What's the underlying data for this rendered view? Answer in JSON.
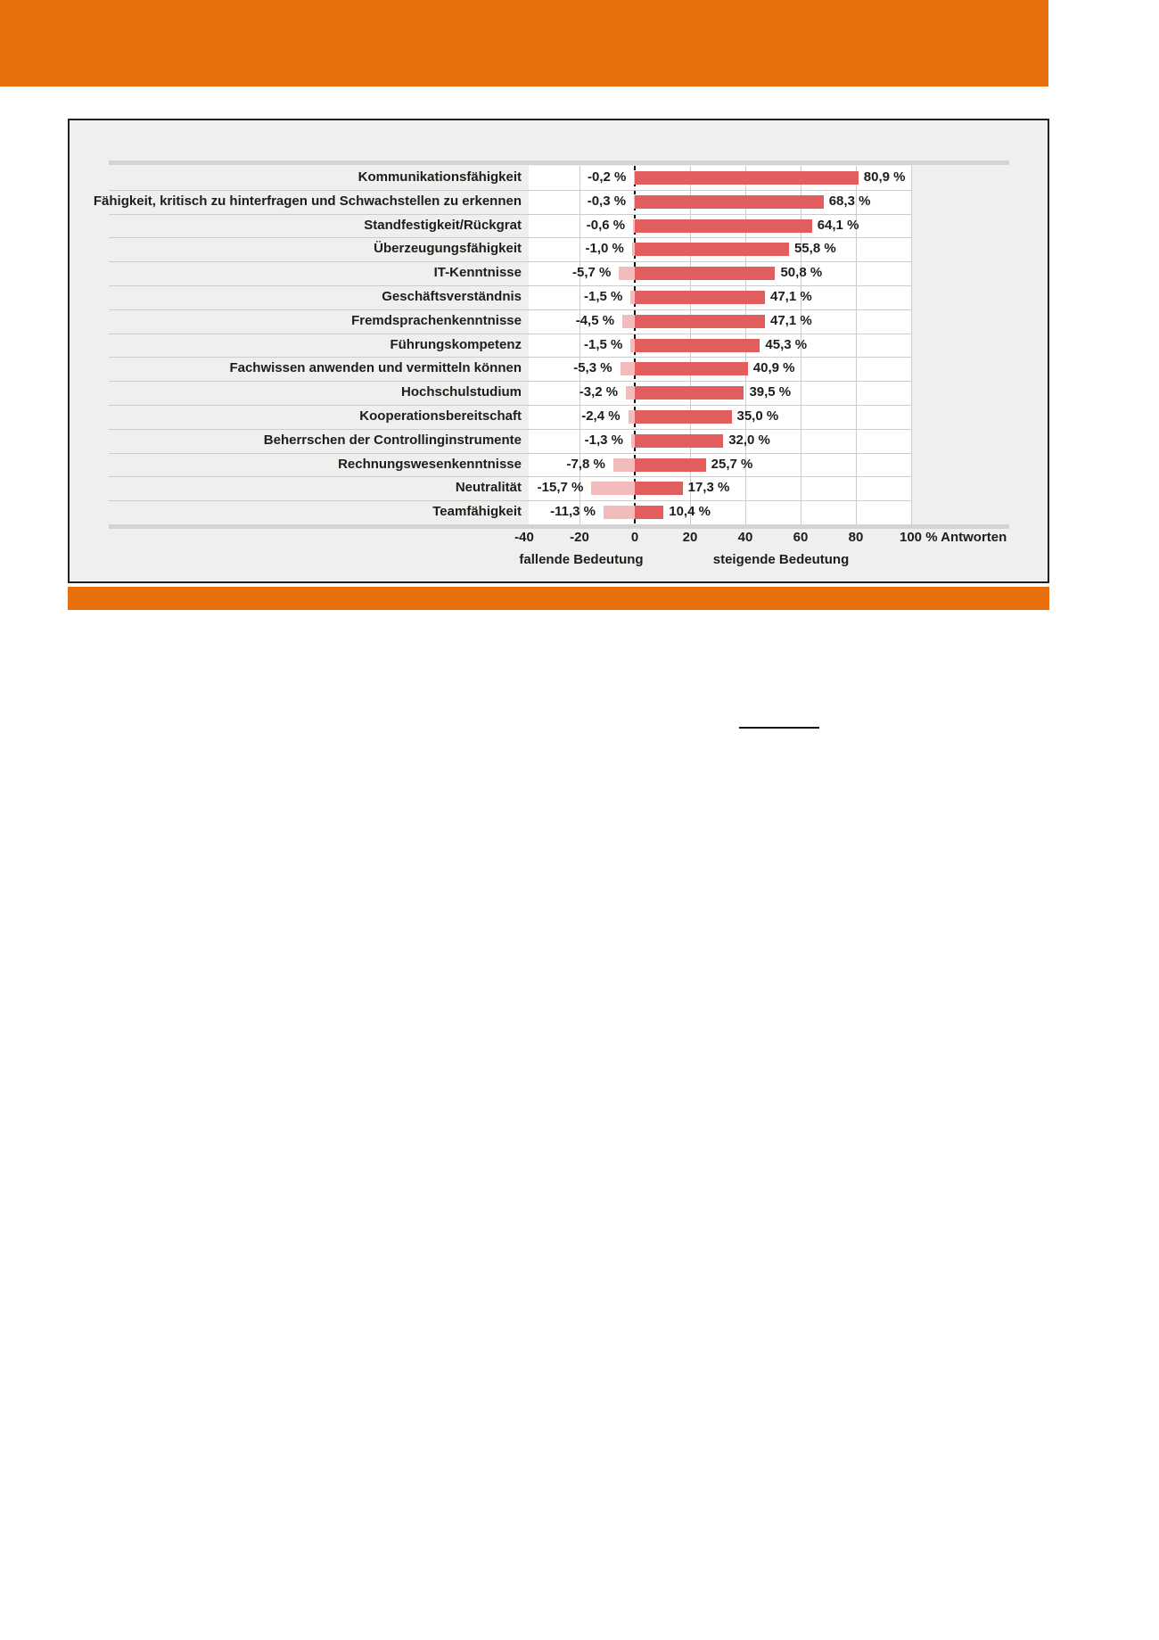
{
  "colors": {
    "accent_orange": "#e96f0d",
    "bar_positive": "#e25d5d",
    "bar_negative": "#f2bcbc",
    "panel_bg": "#f0efed",
    "panel_border": "#222222",
    "grid_line": "#cccccc",
    "rule_gray": "#d3d3d3",
    "text_dark": "#1d1d1b",
    "zero_line": "#111111"
  },
  "chart_data": {
    "type": "bar",
    "orientation": "horizontal-diverging",
    "title": "",
    "xlabel": "% Antworten",
    "xlim": [
      -40,
      100
    ],
    "grid": true,
    "categories": [
      "Kommunikationsfähigkeit",
      "Fähigkeit, kritisch zu hinterfragen und Schwachstellen zu erkennen",
      "Standfestigkeit/Rückgrat",
      "Überzeugungsfähigkeit",
      "IT-Kenntnisse",
      "Geschäftsverständnis",
      "Fremdsprachenkenntnisse",
      "Führungskompetenz",
      "Fachwissen anwenden und vermitteln können",
      "Hochschulstudium",
      "Kooperationsbereitschaft",
      "Beherrschen der Controllinginstrumente",
      "Rechnungswesenkenntnisse",
      "Neutralität",
      "Teamfähigkeit"
    ],
    "series": [
      {
        "name": "fallende Bedeutung",
        "values": [
          -0.2,
          -0.3,
          -0.6,
          -1.0,
          -5.7,
          -1.5,
          -4.5,
          -1.5,
          -5.3,
          -3.2,
          -2.4,
          -1.3,
          -7.8,
          -15.7,
          -11.3
        ],
        "labels": [
          "-0,2 %",
          "-0,3 %",
          "-0,6 %",
          "-1,0 %",
          "-5,7 %",
          "-1,5 %",
          "-4,5 %",
          "-1,5 %",
          "-5,3 %",
          "-3,2 %",
          "-2,4 %",
          "-1,3 %",
          "-7,8 %",
          "-15,7 %",
          "-11,3 %"
        ]
      },
      {
        "name": "steigende Bedeutung",
        "values": [
          80.9,
          68.3,
          64.1,
          55.8,
          50.8,
          47.1,
          47.1,
          45.3,
          40.9,
          39.5,
          35.0,
          32.0,
          25.7,
          17.3,
          10.4
        ],
        "labels": [
          "80,9 %",
          "68,3 %",
          "64,1 %",
          "55,8 %",
          "50,8 %",
          "47,1 %",
          "47,1 %",
          "45,3 %",
          "40,9 %",
          "39,5 %",
          "35,0 %",
          "32,0 %",
          "25,7 %",
          "17,3 %",
          "10,4 %"
        ]
      }
    ],
    "x_ticks": [
      -40,
      -20,
      0,
      20,
      40,
      60,
      80,
      100
    ],
    "x_tick_labels": [
      "-40",
      "-20",
      "0",
      "20",
      "40",
      "60",
      "80",
      "100"
    ],
    "x_axis_suffix": "% Antworten",
    "axis_caption_left": "fallende Bedeutung",
    "axis_caption_right": "steigende Bedeutung",
    "zero_line_style": "dashed"
  }
}
